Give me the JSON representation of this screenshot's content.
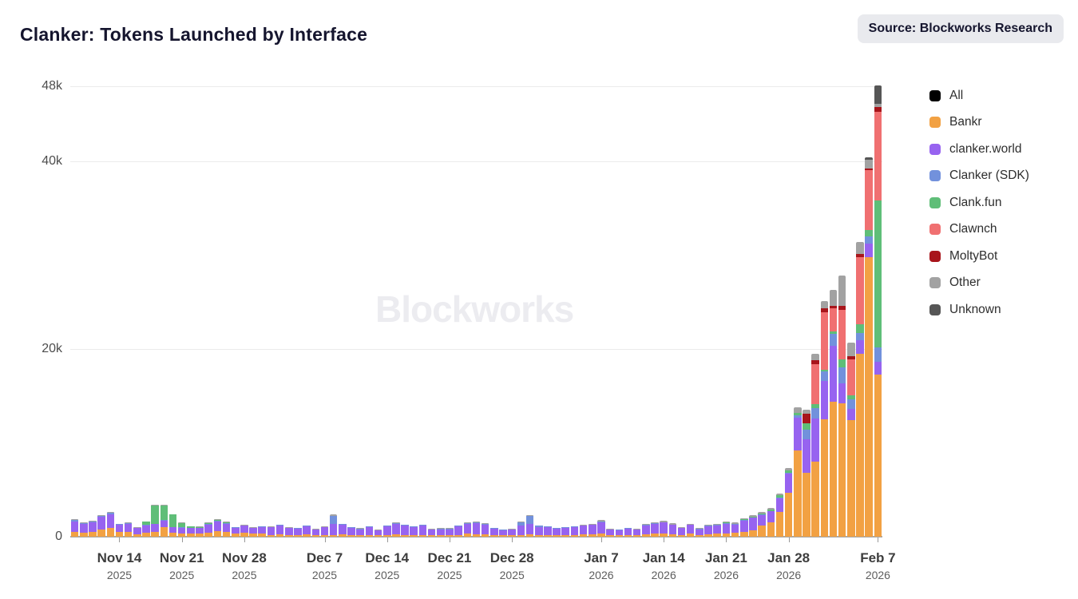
{
  "header": {
    "title": "Clanker: Tokens Launched by Interface",
    "source_badge": "Source: Blockworks Research"
  },
  "watermark": "Blockworks",
  "legend": [
    {
      "label": "All",
      "color": "#000000"
    },
    {
      "label": "Bankr",
      "color": "#F2A143"
    },
    {
      "label": "clanker.world",
      "color": "#9763F0"
    },
    {
      "label": "Clanker (SDK)",
      "color": "#7291DC"
    },
    {
      "label": "Clank.fun",
      "color": "#5FBE78"
    },
    {
      "label": "Clawnch",
      "color": "#F07071"
    },
    {
      "label": "MoltyBot",
      "color": "#A8151B"
    },
    {
      "label": "Other",
      "color": "#A2A2A2"
    },
    {
      "label": "Unknown",
      "color": "#565656"
    }
  ],
  "y_axis": {
    "max": 48,
    "unit": "thousands of tokens",
    "ticks": [
      {
        "value": 0,
        "label": "0"
      },
      {
        "value": 20,
        "label": "20k"
      },
      {
        "value": 40,
        "label": "40k"
      },
      {
        "value": 48,
        "label": "48k"
      }
    ]
  },
  "x_axis": {
    "ticks": [
      {
        "index": 5,
        "label": "Nov 14",
        "year": "2025"
      },
      {
        "index": 12,
        "label": "Nov 21",
        "year": "2025"
      },
      {
        "index": 19,
        "label": "Nov 28",
        "year": "2025"
      },
      {
        "index": 28,
        "label": "Dec 7",
        "year": "2025"
      },
      {
        "index": 35,
        "label": "Dec 14",
        "year": "2025"
      },
      {
        "index": 42,
        "label": "Dec 21",
        "year": "2025"
      },
      {
        "index": 49,
        "label": "Dec 28",
        "year": "2025"
      },
      {
        "index": 59,
        "label": "Jan 7",
        "year": "2026"
      },
      {
        "index": 66,
        "label": "Jan 14",
        "year": "2026"
      },
      {
        "index": 73,
        "label": "Jan 21",
        "year": "2026"
      },
      {
        "index": 80,
        "label": "Jan 28",
        "year": "2026"
      },
      {
        "index": 90,
        "label": "Feb 7",
        "year": "2026"
      }
    ]
  },
  "chart_data": {
    "type": "bar",
    "stacked": true,
    "title": "Clanker: Tokens Launched by Interface",
    "value_unit": "k tokens (thousands)",
    "x_range": [
      "Nov 9 2025",
      "Feb 7 2026"
    ],
    "ylim": [
      0,
      48
    ],
    "legend_position": "right",
    "series": [
      {
        "name": "Bankr",
        "color": "#F2A143"
      },
      {
        "name": "clanker.world",
        "color": "#9763F0"
      },
      {
        "name": "Clanker (SDK)",
        "color": "#7291DC"
      },
      {
        "name": "Clank.fun",
        "color": "#5FBE78"
      },
      {
        "name": "Clawnch",
        "color": "#F07071"
      },
      {
        "name": "MoltyBot",
        "color": "#A8151B"
      },
      {
        "name": "Other",
        "color": "#A2A2A2"
      },
      {
        "name": "Unknown",
        "color": "#565656"
      }
    ],
    "days": [
      {
        "d": "Nov 9",
        "v": [
          0.5,
          1.1,
          0.15,
          0,
          0,
          0,
          0.1,
          0
        ]
      },
      {
        "d": "Nov 10",
        "v": [
          0.45,
          0.9,
          0.1,
          0,
          0,
          0,
          0.05,
          0
        ]
      },
      {
        "d": "Nov 11",
        "v": [
          0.5,
          1.05,
          0.1,
          0,
          0,
          0,
          0.05,
          0
        ]
      },
      {
        "d": "Nov 12",
        "v": [
          0.8,
          1.3,
          0.15,
          0,
          0,
          0,
          0.05,
          0
        ]
      },
      {
        "d": "Nov 13",
        "v": [
          0.9,
          1.5,
          0.15,
          0,
          0,
          0,
          0.1,
          0
        ]
      },
      {
        "d": "Nov 14",
        "v": [
          0.5,
          0.75,
          0.1,
          0,
          0,
          0,
          0.05,
          0
        ]
      },
      {
        "d": "Nov 15",
        "v": [
          0.55,
          0.85,
          0.05,
          0,
          0,
          0,
          0.05,
          0
        ]
      },
      {
        "d": "Nov 16",
        "v": [
          0.25,
          0.65,
          0.05,
          0,
          0,
          0,
          0.05,
          0
        ]
      },
      {
        "d": "Nov 17",
        "v": [
          0.45,
          0.75,
          0.05,
          0.35,
          0,
          0,
          0.05,
          0
        ]
      },
      {
        "d": "Nov 18",
        "v": [
          0.5,
          0.85,
          0.05,
          1.9,
          0,
          0,
          0.1,
          0
        ]
      },
      {
        "d": "Nov 19",
        "v": [
          1.0,
          0.7,
          0.05,
          1.55,
          0,
          0,
          0.1,
          0
        ]
      },
      {
        "d": "Nov 20",
        "v": [
          0.45,
          0.55,
          0.05,
          1.3,
          0,
          0,
          0.05,
          0
        ]
      },
      {
        "d": "Nov 21",
        "v": [
          0.35,
          0.6,
          0.05,
          0.45,
          0,
          0,
          0.05,
          0
        ]
      },
      {
        "d": "Nov 22",
        "v": [
          0.35,
          0.55,
          0.05,
          0.15,
          0,
          0,
          0.05,
          0
        ]
      },
      {
        "d": "Nov 23",
        "v": [
          0.3,
          0.6,
          0.05,
          0.1,
          0,
          0,
          0.05,
          0
        ]
      },
      {
        "d": "Nov 24",
        "v": [
          0.45,
          0.85,
          0.05,
          0.1,
          0,
          0,
          0.1,
          0
        ]
      },
      {
        "d": "Nov 25",
        "v": [
          0.6,
          1.05,
          0.05,
          0.05,
          0,
          0,
          0.15,
          0
        ]
      },
      {
        "d": "Nov 26",
        "v": [
          0.5,
          0.9,
          0.05,
          0.05,
          0,
          0,
          0.1,
          0
        ]
      },
      {
        "d": "Nov 27",
        "v": [
          0.35,
          0.6,
          0.05,
          0,
          0,
          0,
          0.05,
          0
        ]
      },
      {
        "d": "Nov 28",
        "v": [
          0.4,
          0.75,
          0.05,
          0,
          0,
          0,
          0.05,
          0
        ]
      },
      {
        "d": "Nov 29",
        "v": [
          0.3,
          0.6,
          0.05,
          0,
          0,
          0,
          0.05,
          0
        ]
      },
      {
        "d": "Nov 30",
        "v": [
          0.35,
          0.7,
          0.05,
          0,
          0,
          0,
          0.05,
          0
        ]
      },
      {
        "d": "Dec 1",
        "v": [
          0.2,
          0.8,
          0.05,
          0,
          0,
          0,
          0.05,
          0
        ]
      },
      {
        "d": "Dec 2",
        "v": [
          0.25,
          0.95,
          0.05,
          0,
          0,
          0,
          0.05,
          0
        ]
      },
      {
        "d": "Dec 3",
        "v": [
          0.2,
          0.7,
          0.05,
          0,
          0,
          0,
          0.05,
          0
        ]
      },
      {
        "d": "Dec 4",
        "v": [
          0.2,
          0.65,
          0.05,
          0,
          0,
          0,
          0.05,
          0
        ]
      },
      {
        "d": "Dec 5",
        "v": [
          0.25,
          0.85,
          0.05,
          0,
          0,
          0,
          0.05,
          0
        ]
      },
      {
        "d": "Dec 6",
        "v": [
          0.15,
          0.6,
          0.05,
          0,
          0,
          0,
          0.05,
          0
        ]
      },
      {
        "d": "Dec 7",
        "v": [
          0.2,
          0.8,
          0.05,
          0,
          0,
          0,
          0.05,
          0
        ]
      },
      {
        "d": "Dec 8",
        "v": [
          0.2,
          1.2,
          0.85,
          0,
          0,
          0,
          0.1,
          0
        ]
      },
      {
        "d": "Dec 9",
        "v": [
          0.25,
          1.0,
          0.1,
          0,
          0,
          0,
          0.05,
          0
        ]
      },
      {
        "d": "Dec 10",
        "v": [
          0.2,
          0.75,
          0.05,
          0,
          0,
          0,
          0.05,
          0
        ]
      },
      {
        "d": "Dec 11",
        "v": [
          0.15,
          0.65,
          0.05,
          0,
          0,
          0,
          0.05,
          0
        ]
      },
      {
        "d": "Dec 12",
        "v": [
          0.2,
          0.85,
          0.05,
          0,
          0,
          0,
          0.05,
          0
        ]
      },
      {
        "d": "Dec 13",
        "v": [
          0.15,
          0.5,
          0.05,
          0,
          0,
          0,
          0.05,
          0
        ]
      },
      {
        "d": "Dec 14",
        "v": [
          0.2,
          0.9,
          0.05,
          0,
          0,
          0,
          0.05,
          0
        ]
      },
      {
        "d": "Dec 15",
        "v": [
          0.25,
          1.15,
          0.05,
          0,
          0,
          0,
          0.1,
          0
        ]
      },
      {
        "d": "Dec 16",
        "v": [
          0.2,
          1.0,
          0.05,
          0,
          0,
          0,
          0.05,
          0
        ]
      },
      {
        "d": "Dec 17",
        "v": [
          0.2,
          0.85,
          0.05,
          0,
          0,
          0,
          0.05,
          0
        ]
      },
      {
        "d": "Dec 18",
        "v": [
          0.2,
          1.0,
          0.05,
          0,
          0,
          0,
          0.05,
          0
        ]
      },
      {
        "d": "Dec 19",
        "v": [
          0.15,
          0.6,
          0.05,
          0,
          0,
          0,
          0.05,
          0
        ]
      },
      {
        "d": "Dec 20",
        "v": [
          0.15,
          0.65,
          0.05,
          0,
          0,
          0,
          0.05,
          0
        ]
      },
      {
        "d": "Dec 21",
        "v": [
          0.15,
          0.65,
          0.05,
          0,
          0,
          0,
          0.05,
          0
        ]
      },
      {
        "d": "Dec 22",
        "v": [
          0.2,
          0.9,
          0.05,
          0,
          0,
          0,
          0.05,
          0
        ]
      },
      {
        "d": "Dec 23",
        "v": [
          0.3,
          1.1,
          0.05,
          0,
          0,
          0,
          0.1,
          0
        ]
      },
      {
        "d": "Dec 24",
        "v": [
          0.25,
          1.2,
          0.1,
          0,
          0,
          0,
          0.1,
          0
        ]
      },
      {
        "d": "Dec 25",
        "v": [
          0.25,
          1.05,
          0.05,
          0,
          0,
          0,
          0.1,
          0
        ]
      },
      {
        "d": "Dec 26",
        "v": [
          0.15,
          0.7,
          0.05,
          0,
          0,
          0,
          0.05,
          0
        ]
      },
      {
        "d": "Dec 27",
        "v": [
          0.15,
          0.55,
          0.05,
          0,
          0,
          0,
          0.05,
          0
        ]
      },
      {
        "d": "Dec 28",
        "v": [
          0.15,
          0.6,
          0.05,
          0,
          0,
          0,
          0.05,
          0
        ]
      },
      {
        "d": "Dec 29",
        "v": [
          0.2,
          1.0,
          0.35,
          0,
          0,
          0,
          0.05,
          0
        ]
      },
      {
        "d": "Dec 30",
        "v": [
          0.25,
          1.1,
          0.85,
          0,
          0,
          0,
          0.1,
          0
        ]
      },
      {
        "d": "Dec 31",
        "v": [
          0.2,
          0.85,
          0.1,
          0,
          0,
          0,
          0.05,
          0
        ]
      },
      {
        "d": "Jan 1",
        "v": [
          0.2,
          0.85,
          0.05,
          0,
          0,
          0,
          0.05,
          0
        ]
      },
      {
        "d": "Jan 2",
        "v": [
          0.15,
          0.7,
          0.05,
          0,
          0,
          0,
          0.05,
          0
        ]
      },
      {
        "d": "Jan 3",
        "v": [
          0.2,
          0.75,
          0.05,
          0,
          0,
          0,
          0.05,
          0
        ]
      },
      {
        "d": "Jan 4",
        "v": [
          0.2,
          0.85,
          0.05,
          0,
          0,
          0,
          0.05,
          0
        ]
      },
      {
        "d": "Jan 5",
        "v": [
          0.25,
          0.9,
          0.05,
          0,
          0,
          0,
          0.05,
          0
        ]
      },
      {
        "d": "Jan 6",
        "v": [
          0.25,
          1.0,
          0.05,
          0,
          0,
          0,
          0.1,
          0
        ]
      },
      {
        "d": "Jan 7",
        "v": [
          0.3,
          1.25,
          0.05,
          0,
          0,
          0,
          0.15,
          0
        ]
      },
      {
        "d": "Jan 8",
        "v": [
          0.15,
          0.6,
          0.05,
          0,
          0,
          0,
          0.05,
          0
        ]
      },
      {
        "d": "Jan 9",
        "v": [
          0.15,
          0.55,
          0.05,
          0,
          0,
          0,
          0.05,
          0
        ]
      },
      {
        "d": "Jan 10",
        "v": [
          0.2,
          0.65,
          0.05,
          0,
          0,
          0,
          0.05,
          0
        ]
      },
      {
        "d": "Jan 11",
        "v": [
          0.15,
          0.6,
          0.05,
          0,
          0,
          0,
          0.05,
          0
        ]
      },
      {
        "d": "Jan 12",
        "v": [
          0.25,
          0.95,
          0.05,
          0,
          0,
          0,
          0.1,
          0
        ]
      },
      {
        "d": "Jan 13",
        "v": [
          0.3,
          1.1,
          0.05,
          0,
          0,
          0,
          0.1,
          0
        ]
      },
      {
        "d": "Jan 14",
        "v": [
          0.3,
          1.2,
          0.05,
          0,
          0,
          0,
          0.15,
          0
        ]
      },
      {
        "d": "Jan 15",
        "v": [
          0.25,
          1.0,
          0.05,
          0,
          0,
          0,
          0.15,
          0
        ]
      },
      {
        "d": "Jan 16",
        "v": [
          0.2,
          0.7,
          0.05,
          0,
          0,
          0,
          0.05,
          0
        ]
      },
      {
        "d": "Jan 17",
        "v": [
          0.3,
          0.95,
          0.05,
          0,
          0,
          0,
          0.05,
          0
        ]
      },
      {
        "d": "Jan 18",
        "v": [
          0.2,
          0.6,
          0.05,
          0,
          0,
          0,
          0.05,
          0
        ]
      },
      {
        "d": "Jan 19",
        "v": [
          0.25,
          0.85,
          0.05,
          0,
          0,
          0,
          0.1,
          0
        ]
      },
      {
        "d": "Jan 20",
        "v": [
          0.3,
          0.9,
          0.05,
          0.05,
          0,
          0,
          0.1,
          0
        ]
      },
      {
        "d": "Jan 21",
        "v": [
          0.35,
          1.05,
          0.05,
          0.1,
          0,
          0,
          0.1,
          0
        ]
      },
      {
        "d": "Jan 22",
        "v": [
          0.4,
          0.9,
          0.05,
          0.05,
          0,
          0,
          0.1,
          0
        ]
      },
      {
        "d": "Jan 23",
        "v": [
          0.55,
          1.15,
          0.05,
          0.1,
          0,
          0,
          0.1,
          0
        ]
      },
      {
        "d": "Jan 24",
        "v": [
          0.7,
          1.3,
          0.05,
          0.1,
          0,
          0,
          0.15,
          0
        ]
      },
      {
        "d": "Jan 25",
        "v": [
          1.2,
          1.1,
          0.05,
          0.15,
          0,
          0,
          0.15,
          0
        ]
      },
      {
        "d": "Jan 26",
        "v": [
          1.5,
          1.2,
          0.05,
          0.15,
          0,
          0,
          0.15,
          0
        ]
      },
      {
        "d": "Jan 27",
        "v": [
          2.6,
          1.5,
          0.1,
          0.2,
          0,
          0,
          0.2,
          0
        ]
      },
      {
        "d": "Jan 28",
        "v": [
          4.7,
          2.0,
          0.15,
          0.25,
          0,
          0,
          0.2,
          0
        ]
      },
      {
        "d": "Jan 29",
        "v": [
          9.2,
          3.5,
          0.2,
          0.3,
          0,
          0,
          0.6,
          0
        ]
      },
      {
        "d": "Jan 30",
        "v": [
          6.8,
          3.6,
          1.0,
          0.7,
          0,
          1.0,
          0.4,
          0
        ]
      },
      {
        "d": "Jan 31",
        "v": [
          8.0,
          4.6,
          1.1,
          0.4,
          4.3,
          0.4,
          0.7,
          0
        ]
      },
      {
        "d": "Feb 1",
        "v": [
          12.5,
          4.1,
          1.0,
          0.2,
          6.1,
          0.4,
          0.8,
          0
        ]
      },
      {
        "d": "Feb 2",
        "v": [
          14.4,
          5.9,
          1.3,
          0.3,
          2.4,
          0.3,
          1.7,
          0
        ]
      },
      {
        "d": "Feb 3",
        "v": [
          14.2,
          2.1,
          1.7,
          0.9,
          5.3,
          0.4,
          3.2,
          0
        ]
      },
      {
        "d": "Feb 4",
        "v": [
          12.4,
          1.2,
          1.0,
          0.5,
          3.8,
          0.3,
          1.5,
          0
        ]
      },
      {
        "d": "Feb 5",
        "v": [
          19.5,
          1.4,
          0.8,
          0.9,
          7.2,
          0.3,
          1.3,
          0
        ]
      },
      {
        "d": "Feb 6",
        "v": [
          29.8,
          1.4,
          0.8,
          0.7,
          6.4,
          0.1,
          1.0,
          0.2
        ]
      },
      {
        "d": "Feb 7",
        "v": [
          17.3,
          1.3,
          1.6,
          15.6,
          9.5,
          0.5,
          0.3,
          2.0
        ]
      }
    ]
  }
}
